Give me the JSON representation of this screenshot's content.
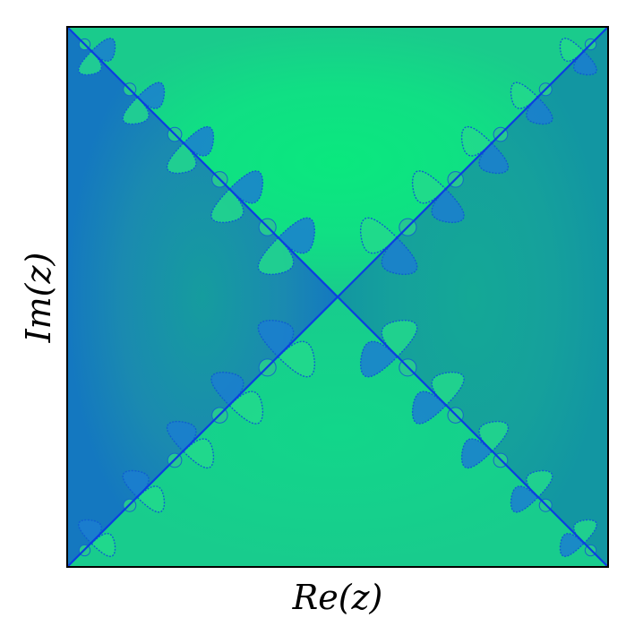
{
  "chart_data": {
    "type": "heatmap",
    "title": "",
    "xlabel": "Re(z)",
    "ylabel": "Im(z)",
    "xticks": [],
    "yticks": [],
    "colormap": "winter",
    "colorbar": false,
    "grid": false,
    "legend": "none",
    "colors": {
      "deep_blue": "#0a5fd2",
      "mid_blue": "#1a8ac8",
      "teal": "#12a39a",
      "bright_green": "#0ae87e",
      "pale_green": "#18d888",
      "frame": "#000000"
    }
  }
}
